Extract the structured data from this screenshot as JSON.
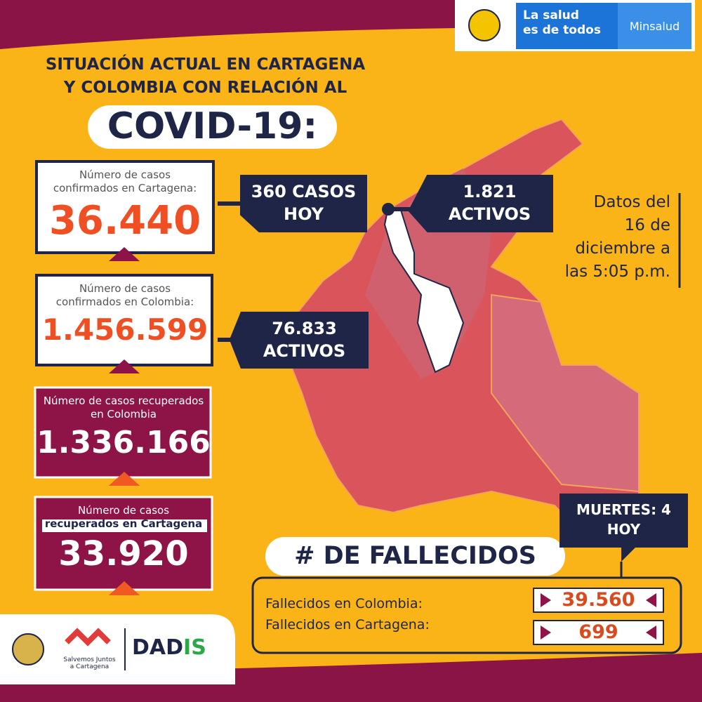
{
  "header": {
    "brand": [
      "La salud",
      "es de todos"
    ],
    "ministry": "Minsalud"
  },
  "title": {
    "lines": [
      "SITUACIÓN ACTUAL EN CARTAGENA",
      "Y COLOMBIA CON RELACIÓN AL"
    ],
    "main": "COVID-19:"
  },
  "cards": [
    {
      "label": [
        "Número de casos",
        "confirmados en Cartagena:"
      ],
      "value": "36.440"
    },
    {
      "label": [
        "Número de casos",
        "confirmados en Colombia:"
      ],
      "value": "1.456.599"
    },
    {
      "label": [
        "Número de casos recuperados",
        "en Colombia"
      ],
      "value": "1.336.166"
    },
    {
      "label": [
        "Número de casos",
        "recuperados en Cartagena"
      ],
      "value": "33.920"
    }
  ],
  "callouts": [
    [
      "360 CASOS",
      "HOY"
    ],
    [
      "1.821",
      "ACTIVOS"
    ],
    [
      "76.833",
      "ACTIVOS"
    ]
  ],
  "date_note": [
    "Datos del",
    "16 de",
    "diciembre a",
    "las 5:05 p.m."
  ],
  "deaths": {
    "title": "# DE FALLECIDOS",
    "today": [
      "MUERTES: 4",
      "HOY"
    ],
    "rows": [
      {
        "label": "Fallecidos en Colombia:",
        "value": "39.560"
      },
      {
        "label": "Fallecidos en Cartagena:",
        "value": "699"
      }
    ]
  },
  "footer": {
    "campaign": [
      "Salvemos Juntos",
      "a Cartagena"
    ],
    "agency": [
      "DAD",
      "IS"
    ]
  }
}
